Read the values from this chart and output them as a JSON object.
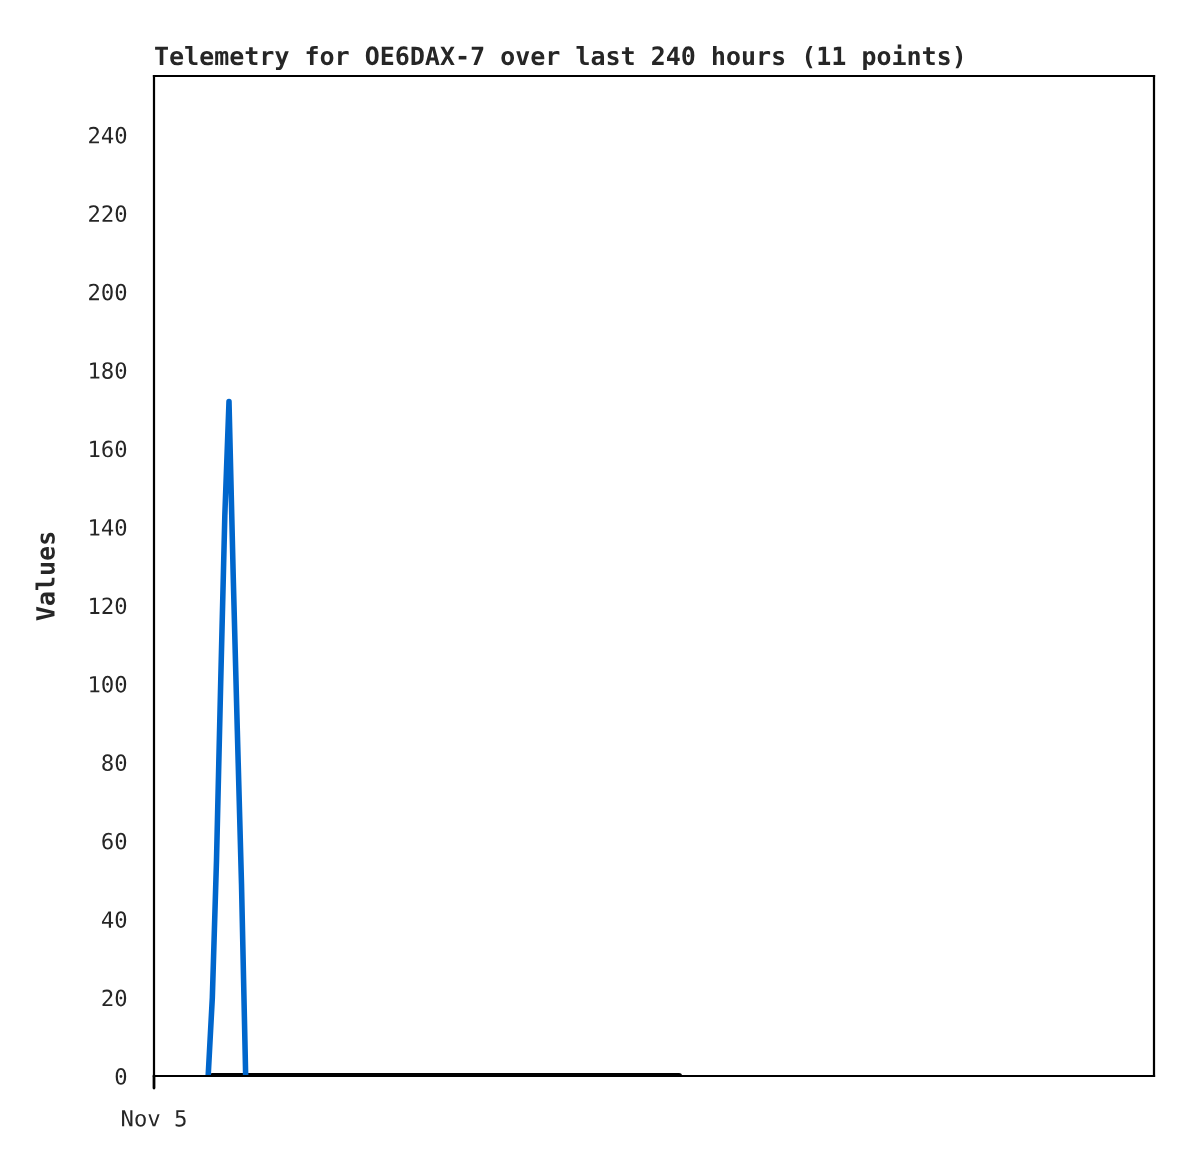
{
  "chart_data": {
    "type": "line",
    "title": "Telemetry for OE6DAX-7 over last 240 hours (11 points)",
    "ylabel": "Values",
    "annotations": [
      "Nov 5"
    ],
    "ylim": [
      0,
      255
    ],
    "yticks": [
      0,
      20,
      40,
      60,
      80,
      100,
      120,
      140,
      160,
      180,
      200,
      220,
      240
    ],
    "grid": false,
    "legend": false,
    "categories": [
      null,
      null,
      null,
      null,
      null,
      null,
      null,
      null,
      null,
      null,
      null,
      null,
      null,
      null,
      null,
      null,
      null,
      null,
      null,
      null,
      null,
      null,
      null,
      null,
      null,
      null,
      null,
      null,
      null,
      null,
      null,
      null,
      null,
      null,
      null,
      null,
      null,
      null,
      null,
      null,
      null,
      null,
      null,
      null,
      null,
      null,
      null,
      null,
      null,
      null,
      null,
      null,
      null,
      null,
      null,
      null,
      null,
      null,
      null,
      null,
      null,
      null,
      null,
      null,
      null,
      null,
      null,
      null,
      null,
      null,
      null,
      null,
      null,
      null,
      null,
      null,
      null,
      null,
      null,
      null,
      null,
      null,
      null,
      null,
      null,
      null,
      null,
      null,
      null,
      null,
      null,
      null,
      null,
      null,
      null,
      null,
      null,
      null,
      null,
      null,
      null,
      null,
      null,
      null,
      null,
      null,
      null,
      null,
      null,
      null,
      null,
      null,
      null,
      null,
      null,
      null,
      null,
      null,
      null,
      null,
      null,
      null,
      null,
      null,
      null,
      null,
      null,
      null,
      null,
      null,
      null,
      null,
      null,
      null,
      null,
      null,
      null,
      null,
      null,
      null,
      null,
      null,
      null,
      null,
      null,
      null,
      null,
      null,
      null,
      null,
      null,
      null,
      null,
      null,
      null,
      null,
      null,
      null,
      null,
      null,
      null,
      null,
      null,
      null,
      null,
      null,
      null,
      null,
      null,
      null,
      null,
      null,
      null,
      null,
      null,
      null,
      null,
      null,
      null,
      null,
      null,
      null,
      null,
      null,
      null,
      null,
      null,
      null,
      null,
      null,
      null,
      null,
      null,
      null,
      null,
      null,
      null,
      null,
      null,
      null,
      null,
      null,
      null,
      null,
      null,
      null,
      null,
      null,
      null,
      null,
      null,
      null,
      null,
      null,
      null,
      null,
      null,
      null,
      null,
      null,
      null,
      null,
      null,
      null,
      null,
      null,
      null,
      null,
      null,
      null,
      null,
      null,
      null,
      null,
      null,
      null,
      null,
      null,
      null,
      null,
      null
    ],
    "series": [
      {
        "color": "#000000",
        "values": [
          null,
          null,
          null,
          null,
          null,
          null,
          null,
          null,
          null,
          null,
          null,
          null,
          null,
          null,
          0,
          0,
          0,
          0,
          0,
          0,
          0,
          0,
          0,
          0,
          0,
          0,
          0,
          0,
          0,
          0,
          0,
          0,
          0,
          0,
          0,
          0,
          0,
          0,
          0,
          0,
          0,
          0,
          0,
          0,
          0,
          0,
          0,
          0,
          0,
          0,
          0,
          0,
          0,
          0,
          0,
          0,
          0,
          0,
          0,
          0,
          0,
          0,
          0,
          0,
          0,
          0,
          0,
          0,
          0,
          0,
          0,
          0,
          0,
          0,
          0,
          0,
          0,
          0,
          0,
          0,
          0,
          0,
          0,
          0,
          0,
          0,
          0,
          0,
          0,
          0,
          0,
          0,
          0,
          0,
          0,
          0,
          0,
          0,
          0,
          0,
          0,
          0,
          0,
          0,
          0,
          0,
          0,
          0,
          0,
          0,
          0,
          0,
          0,
          0,
          0,
          0,
          0,
          0,
          0,
          0,
          0,
          0,
          0,
          0,
          0,
          0,
          0,
          null,
          null,
          null,
          null,
          null,
          null,
          null,
          null,
          null,
          null,
          null,
          null,
          null,
          null,
          null,
          null,
          null,
          null,
          null,
          null,
          null,
          null,
          null,
          null,
          null,
          null,
          null,
          null,
          null,
          null,
          null,
          null,
          null,
          null,
          null,
          null,
          null,
          null,
          null,
          null,
          null,
          null,
          null,
          null,
          null,
          null,
          null,
          null,
          null,
          null,
          null,
          null,
          null,
          null,
          null,
          null,
          null,
          null,
          null,
          null,
          null,
          null,
          null,
          null,
          null,
          null,
          null,
          null,
          null,
          null,
          null,
          null,
          null,
          null,
          null,
          null,
          null,
          null,
          null,
          null,
          null,
          null,
          null,
          null,
          null,
          null,
          null,
          null,
          null,
          null,
          null,
          null,
          null,
          null,
          null,
          null,
          null,
          null,
          null,
          null,
          null,
          null,
          null,
          null,
          null,
          null,
          null,
          null,
          null,
          null,
          null,
          null,
          null,
          null
        ]
      },
      {
        "color": "#0066cc",
        "values": [
          null,
          null,
          null,
          null,
          null,
          null,
          null,
          null,
          null,
          null,
          null,
          null,
          null,
          0,
          20,
          55,
          100,
          143,
          172,
          128,
          88,
          49,
          0,
          null,
          null,
          null,
          null,
          null,
          null,
          null,
          null,
          null,
          null,
          null,
          null,
          null,
          null,
          null,
          null,
          null,
          null,
          null,
          null,
          null,
          null,
          null,
          null,
          null,
          null,
          null,
          null,
          null,
          null,
          null,
          null,
          null,
          null,
          null,
          null,
          null,
          null,
          null,
          null,
          null,
          null,
          null,
          null,
          null,
          null,
          null,
          null,
          null,
          null,
          null,
          null,
          null,
          null,
          null,
          null,
          null,
          null,
          null,
          null,
          null,
          null,
          null,
          null,
          null,
          null,
          null,
          null,
          null,
          null,
          null,
          null,
          null,
          null,
          null,
          null,
          null,
          null,
          null,
          null,
          null,
          null,
          null,
          null,
          null,
          null,
          null,
          null,
          null,
          null,
          null,
          null,
          null,
          null,
          null,
          null,
          null,
          null,
          null,
          null,
          null,
          null,
          null,
          null,
          null,
          null,
          null,
          null,
          null,
          null,
          null,
          null,
          null,
          null,
          null,
          null,
          null,
          null,
          null,
          null,
          null,
          null,
          null,
          null,
          null,
          null,
          null,
          null,
          null,
          null,
          null,
          null,
          null,
          null,
          null,
          null,
          null,
          null,
          null,
          null,
          null,
          null,
          null,
          null,
          null,
          null,
          null,
          null,
          null,
          null,
          null,
          null,
          null,
          null,
          null,
          null,
          null,
          null,
          null,
          null,
          null,
          null,
          null,
          null,
          null,
          null,
          null,
          null,
          null,
          null,
          null,
          null,
          null,
          null,
          null,
          null,
          null,
          null,
          null,
          null,
          null,
          null,
          null,
          null,
          null,
          null,
          null,
          null,
          null,
          null,
          null,
          null,
          null,
          null,
          null,
          null,
          null,
          null,
          null,
          null,
          null,
          null,
          null,
          null,
          null,
          null,
          null,
          null,
          null,
          null,
          null,
          null,
          null,
          null,
          null,
          null,
          null,
          null
        ]
      }
    ]
  }
}
